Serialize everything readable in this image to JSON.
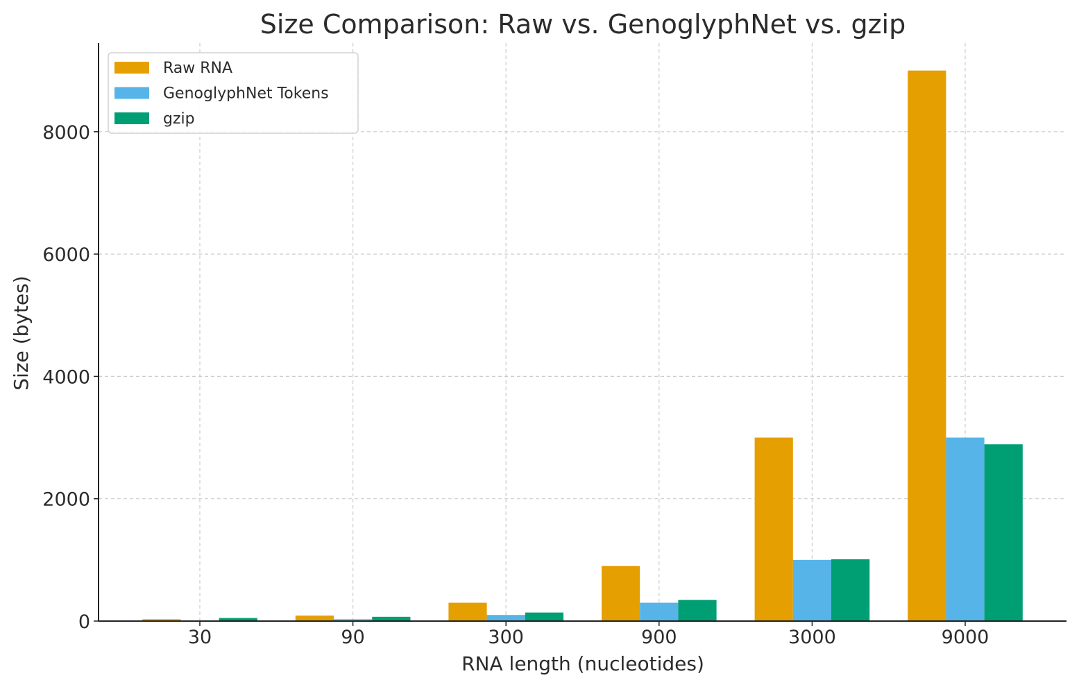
{
  "chart_data": {
    "type": "bar",
    "title": "Size Comparison: Raw vs. GenoglyphNet vs. gzip",
    "xlabel": "RNA length (nucleotides)",
    "ylabel": "Size (bytes)",
    "categories": [
      "30",
      "90",
      "300",
      "900",
      "3000",
      "9000"
    ],
    "series": [
      {
        "name": "Raw RNA",
        "color": "#E69F00",
        "values": [
          30,
          90,
          300,
          900,
          3000,
          9000
        ]
      },
      {
        "name": "GenoglyphNet Tokens",
        "color": "#56B4E9",
        "values": [
          10,
          30,
          100,
          300,
          1000,
          3000
        ]
      },
      {
        "name": "gzip",
        "color": "#009E73",
        "values": [
          50,
          70,
          140,
          345,
          1010,
          2890
        ]
      }
    ],
    "ylim": [
      0,
      9450
    ],
    "yticks": [
      0,
      2000,
      4000,
      6000,
      8000
    ],
    "grid": true,
    "legend_position": "top-left"
  }
}
